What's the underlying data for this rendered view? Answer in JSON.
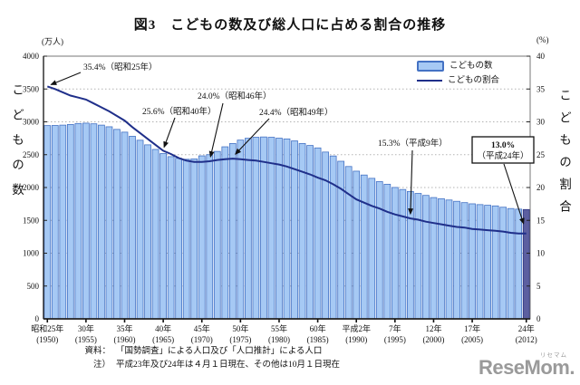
{
  "footer": {
    "source_label": "資料：",
    "source_text": "「国勢調査」による人口及び「人口推計」による人口",
    "note_label": "注）",
    "note_text": "平成23年及び24年は４月１日現在、その他は10月１日現在"
  },
  "logo": {
    "text": "ReseMom.",
    "ruby": "リセマム"
  },
  "colors": {
    "bar_fill": "#A6C9F4",
    "bar_stroke": "#4472C4",
    "last_bar_fill": "#5C5FA0",
    "last_bar_stroke": "#2F3580",
    "line": "#1F2F8A",
    "grid": "#B3B3B3",
    "axis": "#222222"
  },
  "chart_data": {
    "type": "bar",
    "title": "図3　こどもの数及び総人口に占める割合の推移",
    "grid": "horizontal-dotted",
    "legend_position": "top-right-inside",
    "legend": [
      {
        "label": "こどもの数",
        "marker": "bar"
      },
      {
        "label": "こどもの割合",
        "marker": "line"
      }
    ],
    "left_axis": {
      "title": "こどもの数",
      "unit": "(万人)",
      "min": 0,
      "max": 4000,
      "step": 500,
      "ticks": [
        0,
        500,
        1000,
        1500,
        2000,
        2500,
        3000,
        3500,
        4000
      ]
    },
    "right_axis": {
      "title": "こどもの割合",
      "unit": "(%)",
      "min": 0,
      "max": 40,
      "step": 5,
      "ticks": [
        0,
        5,
        10,
        15,
        20,
        25,
        30,
        35,
        40
      ]
    },
    "years": [
      1950,
      1951,
      1952,
      1953,
      1954,
      1955,
      1956,
      1957,
      1958,
      1959,
      1960,
      1961,
      1962,
      1963,
      1964,
      1965,
      1966,
      1967,
      1968,
      1969,
      1970,
      1971,
      1972,
      1973,
      1974,
      1975,
      1976,
      1977,
      1978,
      1979,
      1980,
      1981,
      1982,
      1983,
      1984,
      1985,
      1986,
      1987,
      1988,
      1989,
      1990,
      1991,
      1992,
      1993,
      1994,
      1995,
      1996,
      1997,
      1998,
      1999,
      2000,
      2001,
      2002,
      2003,
      2004,
      2005,
      2006,
      2007,
      2008,
      2009,
      2010,
      2011,
      2012
    ],
    "series": [
      {
        "name": "こどもの数",
        "type": "bar",
        "axis": "left",
        "unit": "万人",
        "values": [
          2943,
          2945,
          2950,
          2960,
          2975,
          2980,
          2970,
          2950,
          2925,
          2885,
          2843,
          2780,
          2720,
          2650,
          2580,
          2517,
          2470,
          2445,
          2430,
          2435,
          2482,
          2500,
          2550,
          2620,
          2670,
          2722,
          2750,
          2765,
          2770,
          2765,
          2751,
          2740,
          2710,
          2670,
          2640,
          2603,
          2540,
          2480,
          2400,
          2320,
          2249,
          2190,
          2140,
          2090,
          2050,
          2001,
          1970,
          1940,
          1910,
          1880,
          1847,
          1830,
          1810,
          1790,
          1770,
          1752,
          1740,
          1730,
          1720,
          1700,
          1680,
          1671,
          1665
        ]
      },
      {
        "name": "こどもの割合",
        "type": "line",
        "axis": "right",
        "unit": "%",
        "values": [
          35.4,
          35.0,
          34.5,
          34.0,
          33.7,
          33.4,
          32.8,
          32.2,
          31.6,
          30.9,
          30.2,
          29.2,
          28.3,
          27.4,
          26.5,
          25.6,
          25.1,
          24.5,
          24.1,
          23.9,
          23.9,
          24.0,
          24.2,
          24.3,
          24.4,
          24.3,
          24.2,
          24.1,
          23.9,
          23.7,
          23.5,
          23.2,
          22.8,
          22.4,
          22.0,
          21.5,
          21.1,
          20.5,
          19.8,
          19.0,
          18.2,
          17.7,
          17.2,
          16.8,
          16.3,
          15.9,
          15.6,
          15.3,
          15.1,
          14.8,
          14.6,
          14.4,
          14.2,
          14.0,
          13.9,
          13.7,
          13.6,
          13.5,
          13.4,
          13.3,
          13.1,
          13.0,
          13.0
        ]
      }
    ],
    "x_ticks": [
      {
        "year": 1950,
        "era": "昭和25年",
        "western": "(1950)"
      },
      {
        "year": 1955,
        "era": "30年",
        "western": "(1955)"
      },
      {
        "year": 1960,
        "era": "35年",
        "western": "(1960)"
      },
      {
        "year": 1965,
        "era": "40年",
        "western": "(1965)"
      },
      {
        "year": 1970,
        "era": "45年",
        "western": "(1970)"
      },
      {
        "year": 1975,
        "era": "50年",
        "western": "(1975)"
      },
      {
        "year": 1980,
        "era": "55年",
        "western": "(1980)"
      },
      {
        "year": 1985,
        "era": "60年",
        "western": "(1985)"
      },
      {
        "year": 1990,
        "era": "平成2年",
        "western": "(1990)"
      },
      {
        "year": 1995,
        "era": "7年",
        "western": "(1995)"
      },
      {
        "year": 2000,
        "era": "12年",
        "western": "(2000)"
      },
      {
        "year": 2005,
        "era": "17年",
        "western": "(2005)"
      },
      {
        "year": 2012,
        "era": "24年",
        "western": "(2012)"
      }
    ],
    "annotations": [
      {
        "text": "35.4%（昭和25年）",
        "year": 1950,
        "value": 35.4,
        "boxed": false
      },
      {
        "text": "25.6%（昭和40年）",
        "year": 1965,
        "value": 25.6,
        "boxed": false
      },
      {
        "text": "24.0%（昭和46年）",
        "year": 1971,
        "value": 24.0,
        "boxed": false
      },
      {
        "text": "24.4%（昭和49年）",
        "year": 1974,
        "value": 24.4,
        "boxed": false
      },
      {
        "text": "15.3%（平成9年）",
        "year": 1997,
        "value": 15.3,
        "boxed": false
      },
      {
        "text": "13.0%（平成24年）",
        "lines": [
          "13.0%",
          "（平成24年）"
        ],
        "year": 2012,
        "value": 13.0,
        "boxed": true
      }
    ]
  }
}
